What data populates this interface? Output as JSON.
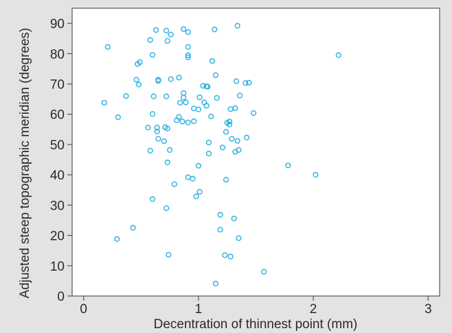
{
  "chart_data": {
    "type": "scatter",
    "title": "",
    "xlabel": "Decentration of thinnest point (mm)",
    "ylabel": "Adjusted steep topographic meridian (degrees)",
    "xlim": [
      -0.1,
      3.1
    ],
    "ylim": [
      0,
      95
    ],
    "xticks": [
      0,
      1,
      2,
      3
    ],
    "yticks": [
      0,
      10,
      20,
      30,
      40,
      50,
      60,
      70,
      80,
      90
    ],
    "grid": false,
    "legend": "none",
    "marker_color": "#29aee1",
    "background_color": "#e4e2e2",
    "plot_background_color": "#ffffff",
    "series": [
      {
        "points": [
          [
            0.21,
            82.2
          ],
          [
            0.18,
            63.8
          ],
          [
            0.3,
            59.0
          ],
          [
            0.37,
            66.0
          ],
          [
            0.29,
            18.8
          ],
          [
            0.43,
            22.5
          ],
          [
            0.46,
            71.4
          ],
          [
            0.48,
            69.8
          ],
          [
            0.47,
            76.6
          ],
          [
            0.49,
            77.2
          ],
          [
            0.58,
            84.5
          ],
          [
            0.6,
            79.6
          ],
          [
            0.63,
            87.8
          ],
          [
            0.72,
            87.6
          ],
          [
            0.76,
            86.3
          ],
          [
            0.73,
            84.2
          ],
          [
            0.65,
            71.4
          ],
          [
            0.65,
            71.0
          ],
          [
            0.61,
            65.9
          ],
          [
            0.72,
            65.9
          ],
          [
            0.76,
            71.6
          ],
          [
            0.83,
            72.1
          ],
          [
            0.84,
            63.8
          ],
          [
            0.87,
            65.5
          ],
          [
            0.87,
            67.0
          ],
          [
            0.89,
            63.9
          ],
          [
            0.86,
            57.6
          ],
          [
            0.91,
            57.3
          ],
          [
            0.96,
            57.7
          ],
          [
            0.96,
            61.9
          ],
          [
            1.0,
            61.6
          ],
          [
            0.83,
            59.1
          ],
          [
            0.81,
            58.0
          ],
          [
            0.6,
            60.1
          ],
          [
            0.56,
            55.6
          ],
          [
            0.64,
            55.6
          ],
          [
            0.64,
            54.3
          ],
          [
            0.73,
            55.3
          ],
          [
            0.71,
            55.7
          ],
          [
            0.65,
            51.9
          ],
          [
            0.7,
            51.1
          ],
          [
            0.75,
            48.2
          ],
          [
            0.58,
            48.0
          ],
          [
            0.73,
            44.1
          ],
          [
            0.79,
            36.9
          ],
          [
            0.91,
            39.2
          ],
          [
            0.95,
            38.7
          ],
          [
            0.98,
            32.9
          ],
          [
            1.01,
            34.4
          ],
          [
            1.0,
            43.0
          ],
          [
            0.6,
            32.0
          ],
          [
            0.72,
            29.0
          ],
          [
            0.74,
            13.6
          ],
          [
            0.91,
            87.1
          ],
          [
            0.91,
            82.2
          ],
          [
            0.91,
            79.5
          ],
          [
            0.91,
            78.8
          ],
          [
            0.87,
            88.1
          ],
          [
            1.14,
            88.0
          ],
          [
            1.34,
            89.2
          ],
          [
            1.12,
            77.6
          ],
          [
            1.15,
            72.9
          ],
          [
            1.04,
            69.4
          ],
          [
            1.07,
            69.2
          ],
          [
            1.08,
            69.1
          ],
          [
            1.01,
            65.6
          ],
          [
            1.05,
            63.9
          ],
          [
            1.07,
            62.8
          ],
          [
            1.16,
            65.4
          ],
          [
            1.28,
            61.7
          ],
          [
            1.32,
            62.0
          ],
          [
            1.36,
            66.2
          ],
          [
            1.33,
            70.9
          ],
          [
            1.41,
            70.3
          ],
          [
            1.44,
            70.4
          ],
          [
            1.48,
            60.4
          ],
          [
            1.11,
            59.3
          ],
          [
            1.25,
            57.2
          ],
          [
            1.27,
            57.6
          ],
          [
            1.27,
            56.6
          ],
          [
            1.24,
            54.2
          ],
          [
            1.29,
            51.9
          ],
          [
            1.34,
            51.2
          ],
          [
            1.42,
            52.3
          ],
          [
            1.09,
            50.7
          ],
          [
            1.21,
            49.0
          ],
          [
            1.32,
            47.6
          ],
          [
            1.35,
            48.2
          ],
          [
            1.09,
            47.0
          ],
          [
            1.24,
            38.4
          ],
          [
            1.19,
            26.8
          ],
          [
            1.31,
            25.6
          ],
          [
            1.19,
            21.9
          ],
          [
            1.35,
            19.1
          ],
          [
            1.23,
            13.5
          ],
          [
            1.28,
            13.0
          ],
          [
            1.15,
            4.1
          ],
          [
            1.57,
            8.0
          ],
          [
            1.78,
            43.1
          ],
          [
            2.02,
            40.0
          ],
          [
            2.22,
            79.5
          ]
        ]
      }
    ]
  }
}
